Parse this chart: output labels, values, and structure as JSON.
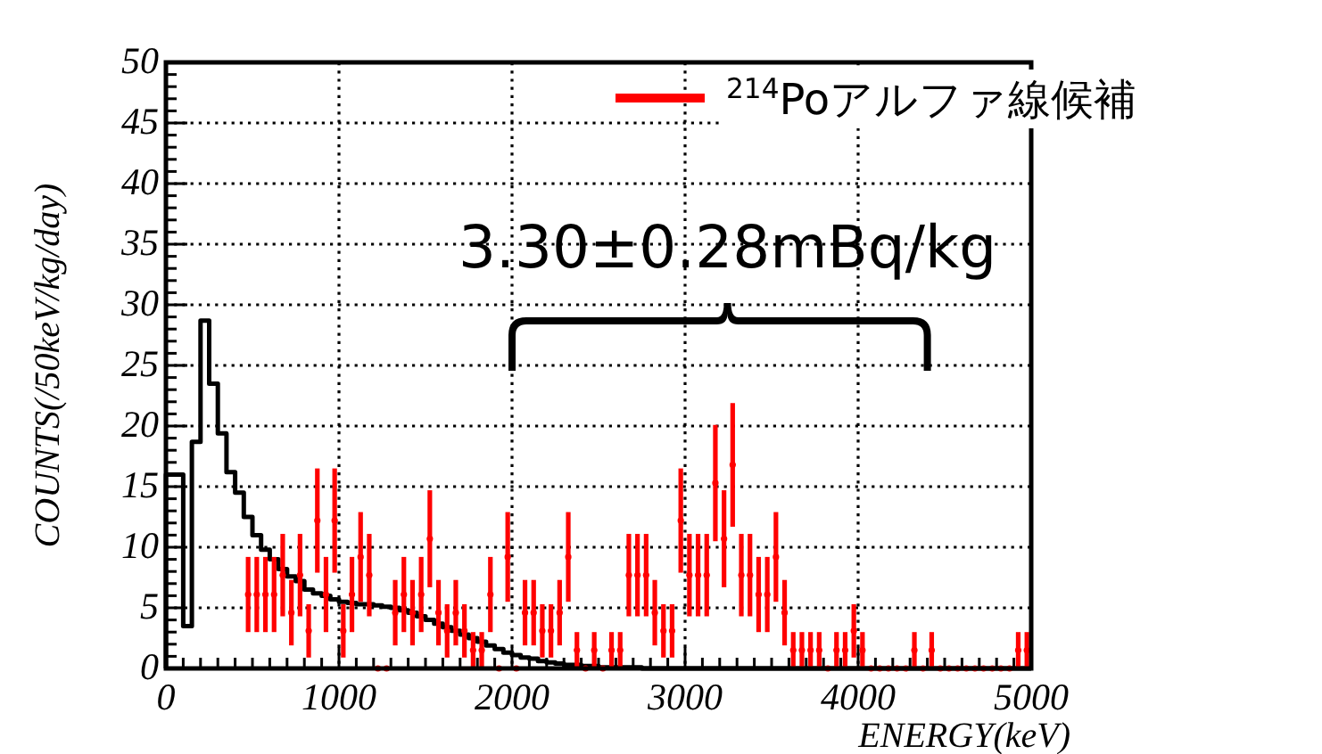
{
  "chart_data": {
    "type": "histogram",
    "xlabel": "ENERGY(keV)",
    "ylabel": "COUNTS(/50keV/kg/day)",
    "xlim": [
      0,
      5000
    ],
    "ylim": [
      0,
      50
    ],
    "xticks": [
      0,
      1000,
      2000,
      3000,
      4000,
      5000
    ],
    "yticks": [
      0,
      5,
      10,
      15,
      20,
      25,
      30,
      35,
      40,
      45,
      50
    ],
    "grid": true,
    "legend": "top right",
    "annotations": [
      "3.30±0.28mBq/kg"
    ],
    "bins": [
      0,
      50,
      100,
      150,
      200,
      250,
      300,
      350,
      400,
      450,
      500,
      550,
      600,
      650,
      700,
      750,
      800,
      850,
      900,
      950,
      1000,
      1050,
      1100,
      1150,
      1200,
      1250,
      1300,
      1350,
      1400,
      1450,
      1500,
      1550,
      1600,
      1650,
      1700,
      1750,
      1800,
      1850,
      1900,
      1950,
      2000,
      2050,
      2100,
      2150,
      2200,
      2250,
      2300,
      2350,
      2400,
      2450,
      2500,
      2550,
      2600,
      2650,
      2700,
      2750,
      2800,
      2850,
      2900,
      2950,
      3000,
      3050,
      3100,
      3150,
      3200,
      3250,
      3300,
      3350,
      3400,
      3450,
      3500,
      3550,
      3600,
      3650,
      3700,
      3750,
      3800,
      3850,
      3900,
      3950,
      4000,
      4050,
      4100,
      4150,
      4200,
      4250,
      4300,
      4350,
      4400,
      4450,
      4500,
      4550,
      4600,
      4650,
      4700,
      4750,
      4800,
      4850,
      4900,
      4950,
      5000
    ],
    "series": [
      {
        "color": "#000000",
        "values": [
          16,
          16,
          3.5,
          18.7,
          28.7,
          23.5,
          19.4,
          16.2,
          14.5,
          12.5,
          11,
          9.8,
          9,
          8.2,
          7.6,
          7.2,
          6.5,
          6.2,
          6,
          5.7,
          5.5,
          5.4,
          5.3,
          5.3,
          5.2,
          5.1,
          5,
          4.8,
          4.6,
          4.3,
          4,
          3.7,
          3.4,
          3.1,
          2.8,
          2.5,
          2.2,
          1.9,
          1.6,
          1.3,
          1.1,
          0.9,
          0.8,
          0.6,
          0.5,
          0.4,
          0.3,
          0.3,
          0.2,
          0.2,
          0.1,
          0.1,
          0.1,
          0.1,
          0.1,
          0,
          0,
          0,
          0,
          0,
          0,
          0,
          0,
          0,
          0,
          0,
          0,
          0,
          0,
          0,
          0,
          0,
          0,
          0,
          0,
          0,
          0,
          0,
          0,
          0,
          0,
          0,
          0,
          0,
          0,
          0,
          0,
          0,
          0,
          0,
          0,
          0,
          0,
          0,
          0,
          0,
          0,
          0,
          0,
          0
        ]
      },
      {
        "type": "scatter",
        "name": "$^{214}$Poアルファ線候補",
        "color": "#ff0000",
        "x": [
          475,
          525,
          575,
          625,
          675,
          725,
          775,
          825,
          875,
          925,
          975,
          1025,
          1075,
          1125,
          1175,
          1225,
          1275,
          1325,
          1375,
          1425,
          1475,
          1525,
          1575,
          1625,
          1675,
          1725,
          1775,
          1825,
          1875,
          1925,
          1975,
          2025,
          2075,
          2125,
          2175,
          2225,
          2275,
          2325,
          2375,
          2425,
          2475,
          2525,
          2575,
          2625,
          2675,
          2725,
          2775,
          2825,
          2875,
          2925,
          2975,
          3025,
          3075,
          3125,
          3175,
          3225,
          3275,
          3325,
          3375,
          3425,
          3475,
          3525,
          3575,
          3625,
          3675,
          3725,
          3775,
          3825,
          3875,
          3925,
          3975,
          4025,
          4075,
          4125,
          4175,
          4225,
          4275,
          4325,
          4375,
          4425,
          4475,
          4525,
          4575,
          4625,
          4675,
          4725,
          4775,
          4825,
          4875,
          4925,
          4975
        ],
        "values": [
          6.1,
          6.1,
          6.1,
          6.1,
          7.7,
          4.6,
          7.7,
          3.1,
          12.2,
          6.1,
          12.2,
          3.1,
          6.1,
          9.2,
          7.7,
          0,
          0,
          4.6,
          6.1,
          4.6,
          6.1,
          10.7,
          4.6,
          3.1,
          4.6,
          3.1,
          1.5,
          1.5,
          6.1,
          0,
          9.2,
          0,
          4.6,
          4.6,
          3.1,
          3.1,
          4.6,
          9.2,
          1.5,
          0,
          1.5,
          0,
          1.5,
          1.5,
          7.7,
          7.7,
          7.7,
          4.6,
          3.1,
          3.1,
          12.2,
          7.7,
          7.7,
          7.7,
          15.3,
          10.7,
          16.8,
          7.7,
          7.7,
          6.1,
          6.1,
          9.2,
          4.6,
          1.5,
          1.5,
          1.5,
          1.5,
          0,
          1.5,
          1.5,
          3.1,
          1.5,
          0,
          0,
          0,
          0,
          0,
          1.5,
          0,
          1.5,
          0,
          0,
          0,
          0,
          0,
          0,
          0,
          0,
          0,
          1.5,
          1.5
        ],
        "errors": [
          3.1,
          3.1,
          3.1,
          3.1,
          3.4,
          2.7,
          3.4,
          2.2,
          4.3,
          3.1,
          4.3,
          2.2,
          3.1,
          3.7,
          3.4,
          0,
          0,
          2.7,
          3.1,
          2.7,
          3.1,
          4.0,
          2.7,
          2.2,
          2.7,
          2.2,
          1.5,
          1.5,
          3.1,
          0,
          3.7,
          0,
          2.7,
          2.7,
          2.2,
          2.2,
          2.7,
          3.7,
          1.5,
          0,
          1.5,
          0,
          1.5,
          1.5,
          3.4,
          3.4,
          3.4,
          2.7,
          2.2,
          2.2,
          4.3,
          3.4,
          3.4,
          3.4,
          4.8,
          4.0,
          5.1,
          3.4,
          3.4,
          3.1,
          3.1,
          3.7,
          2.7,
          1.5,
          1.5,
          1.5,
          1.5,
          0,
          1.5,
          1.5,
          2.2,
          1.5,
          0,
          0,
          0,
          0,
          0,
          1.5,
          0,
          1.5,
          0,
          0,
          0,
          0,
          0,
          0,
          0,
          0,
          0,
          1.5,
          1.5
        ]
      }
    ]
  }
}
